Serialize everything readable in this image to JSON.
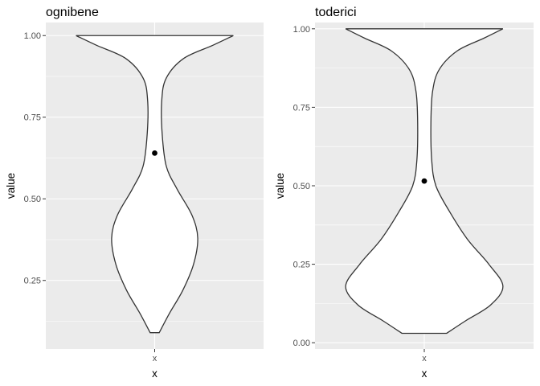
{
  "chart_data": [
    {
      "type": "violin",
      "title": "ognibene",
      "xlabel": "x",
      "ylabel": "value",
      "categories": [
        "x"
      ],
      "ylim": [
        0.04,
        1.04
      ],
      "yticks": [
        0.25,
        0.5,
        0.75,
        1.0
      ],
      "ytick_labels": [
        "0.25",
        "0.50",
        "0.75",
        "1.00"
      ],
      "grid": true,
      "point": {
        "x": "x",
        "y": 0.64
      },
      "violin": {
        "y_range": [
          0.09,
          1.0
        ],
        "profile": [
          {
            "y": 0.09,
            "w": 0.055
          },
          {
            "y": 0.15,
            "w": 0.18
          },
          {
            "y": 0.22,
            "w": 0.34
          },
          {
            "y": 0.3,
            "w": 0.47
          },
          {
            "y": 0.38,
            "w": 0.52
          },
          {
            "y": 0.45,
            "w": 0.45
          },
          {
            "y": 0.53,
            "w": 0.27
          },
          {
            "y": 0.6,
            "w": 0.14
          },
          {
            "y": 0.7,
            "w": 0.09
          },
          {
            "y": 0.8,
            "w": 0.085
          },
          {
            "y": 0.87,
            "w": 0.14
          },
          {
            "y": 0.93,
            "w": 0.35
          },
          {
            "y": 0.97,
            "w": 0.7
          },
          {
            "y": 1.0,
            "w": 0.95
          }
        ]
      }
    },
    {
      "type": "violin",
      "title": "toderici",
      "xlabel": "x",
      "ylabel": "value",
      "categories": [
        "x"
      ],
      "ylim": [
        -0.02,
        1.02
      ],
      "yticks": [
        0.0,
        0.25,
        0.5,
        0.75,
        1.0
      ],
      "ytick_labels": [
        "0.00",
        "0.25",
        "0.50",
        "0.75",
        "1.00"
      ],
      "grid": true,
      "point": {
        "x": "x",
        "y": 0.515
      },
      "violin": {
        "y_range": [
          0.03,
          1.0
        ],
        "profile": [
          {
            "y": 0.03,
            "w": 0.27
          },
          {
            "y": 0.07,
            "w": 0.5
          },
          {
            "y": 0.12,
            "w": 0.8
          },
          {
            "y": 0.18,
            "w": 0.95
          },
          {
            "y": 0.25,
            "w": 0.78
          },
          {
            "y": 0.33,
            "w": 0.52
          },
          {
            "y": 0.42,
            "w": 0.3
          },
          {
            "y": 0.5,
            "w": 0.14
          },
          {
            "y": 0.58,
            "w": 0.09
          },
          {
            "y": 0.7,
            "w": 0.08
          },
          {
            "y": 0.8,
            "w": 0.1
          },
          {
            "y": 0.87,
            "w": 0.18
          },
          {
            "y": 0.93,
            "w": 0.4
          },
          {
            "y": 0.97,
            "w": 0.72
          },
          {
            "y": 1.0,
            "w": 0.95
          }
        ]
      }
    }
  ]
}
